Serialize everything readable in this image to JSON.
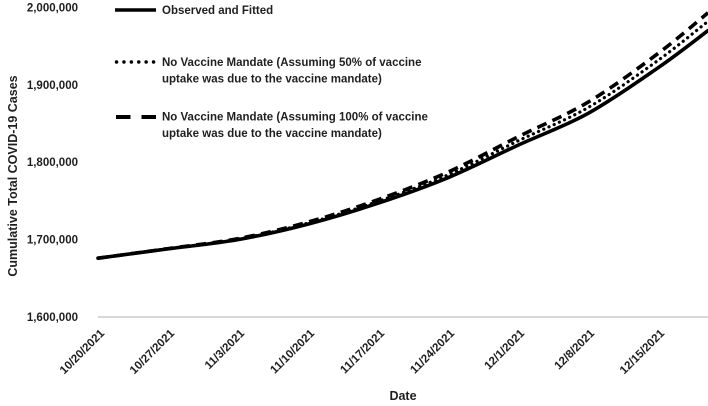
{
  "chart_data": {
    "type": "line",
    "title": "",
    "xlabel": "Date",
    "ylabel": "Cumulative Total COVID-19 Cases",
    "x_tick_labels": [
      "10/20/2021",
      "10/27/2021",
      "11/3/2021",
      "11/10/2021",
      "11/17/2021",
      "11/24/2021",
      "12/1/2021",
      "12/8/2021",
      "12/15/2021"
    ],
    "x_tick_days": [
      0,
      7,
      14,
      21,
      28,
      35,
      42,
      49,
      56
    ],
    "x_range_days": [
      0,
      61
    ],
    "y_tick_labels": [
      "1,600,000",
      "1,700,000",
      "1,800,000",
      "1,900,000",
      "2,000,000"
    ],
    "y_tick_values": [
      1600000,
      1700000,
      1800000,
      1900000,
      2000000
    ],
    "ylim": [
      1600000,
      2010000
    ],
    "grid": false,
    "legend_position": "top-left-inside",
    "series": [
      {
        "name": "Observed and Fitted",
        "style": "solid",
        "days": [
          0,
          7,
          14,
          21,
          28,
          35,
          42,
          49,
          56,
          61
        ],
        "values": [
          1676000,
          1688000,
          1700000,
          1720000,
          1747000,
          1780000,
          1822000,
          1863000,
          1922000,
          1970000
        ]
      },
      {
        "name": "No Vaccine Mandate (Assuming 50% of vaccine uptake was due to the vaccine mandate)",
        "style": "dotted",
        "days": [
          0,
          7,
          14,
          21,
          28,
          35,
          42,
          49,
          56,
          61
        ],
        "values": [
          1676000,
          1688200,
          1700600,
          1721300,
          1749300,
          1783600,
          1827500,
          1870500,
          1931500,
          1982000
        ]
      },
      {
        "name": "No Vaccine Mandate (Assuming 100% of vaccine uptake was due to the vaccine mandate)",
        "style": "dashed",
        "days": [
          0,
          7,
          14,
          21,
          28,
          35,
          42,
          49,
          56,
          61
        ],
        "values": [
          1676000,
          1688400,
          1701300,
          1722600,
          1751600,
          1787200,
          1832800,
          1877500,
          1940500,
          1993000
        ]
      }
    ],
    "legend": [
      {
        "style": "solid",
        "label_lines": [
          "Observed and Fitted"
        ]
      },
      {
        "style": "dotted",
        "label_lines": [
          "No Vaccine Mandate (Assuming 50% of vaccine",
          "uptake was due to the vaccine mandate)"
        ]
      },
      {
        "style": "dashed",
        "label_lines": [
          "No Vaccine Mandate (Assuming 100% of vaccine",
          "uptake was due to the vaccine mandate)"
        ]
      }
    ],
    "colors": {
      "line": "#000000",
      "axis_line": "#bfbfbf",
      "text": "#1f1f1f",
      "background": "#ffffff"
    }
  }
}
